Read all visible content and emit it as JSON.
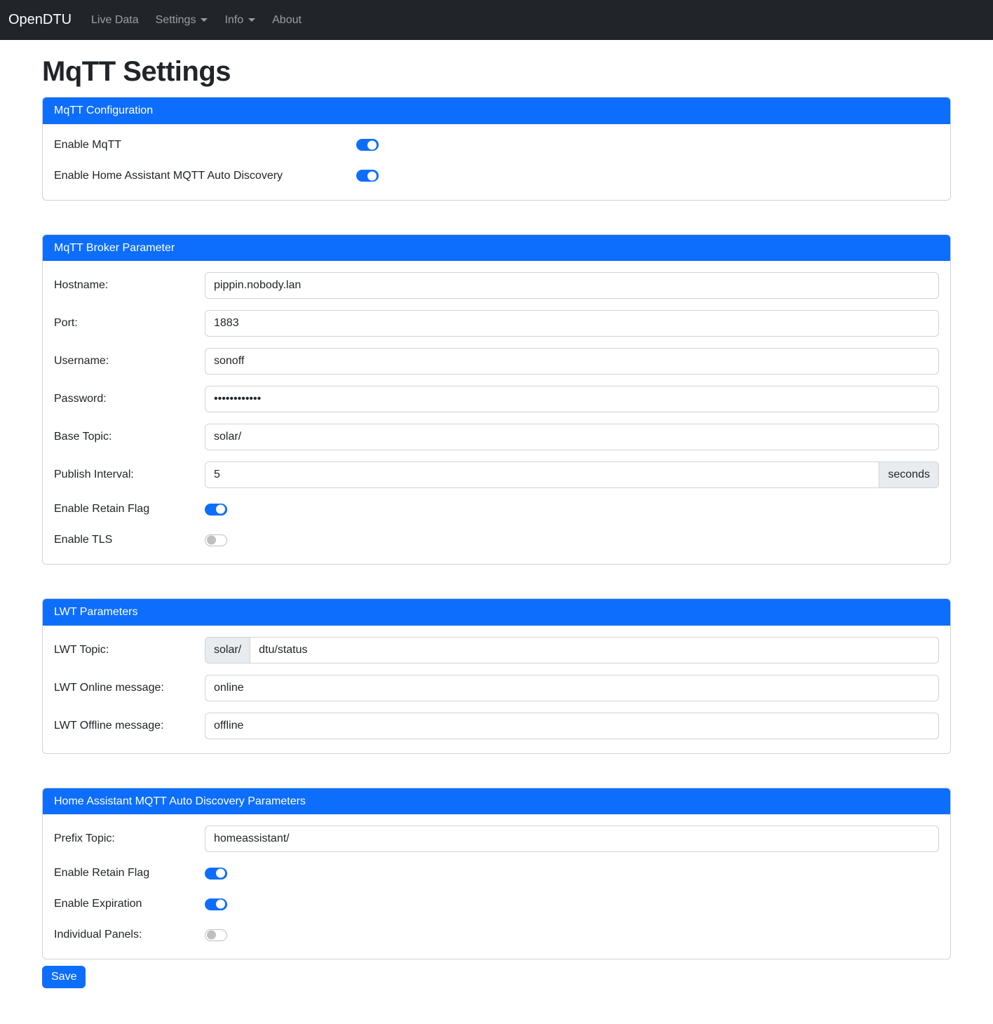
{
  "colors": {
    "primary": "#0d6efd",
    "navbar_bg": "#212529",
    "body_text": "#212529",
    "input_border": "#ced4da",
    "addon_bg": "#e9ecef"
  },
  "navbar": {
    "brand": "OpenDTU",
    "items": [
      {
        "label": "Live Data"
      },
      {
        "label": "Settings",
        "caret": true
      },
      {
        "label": "Info",
        "caret": true
      },
      {
        "label": "About"
      }
    ]
  },
  "page": {
    "title": "MqTT Settings"
  },
  "mqtt_configuration": {
    "header": "MqTT Configuration",
    "enable_mqtt": {
      "label": "Enable MqTT",
      "value": true
    },
    "enable_hass_discovery": {
      "label": "Enable Home Assistant MQTT Auto Discovery",
      "value": true
    }
  },
  "broker": {
    "header": "MqTT Broker Parameter",
    "hostname": {
      "label": "Hostname:",
      "value": "pippin.nobody.lan"
    },
    "port": {
      "label": "Port:",
      "value": "1883"
    },
    "username": {
      "label": "Username:",
      "value": "sonoff"
    },
    "password": {
      "label": "Password:",
      "value": "••••••••••••"
    },
    "base_topic": {
      "label": "Base Topic:",
      "value": "solar/"
    },
    "publish_interval": {
      "label": "Publish Interval:",
      "value": "5",
      "unit": "seconds"
    },
    "retain": {
      "label": "Enable Retain Flag",
      "value": true
    },
    "tls": {
      "label": "Enable TLS",
      "value": false
    }
  },
  "lwt": {
    "header": "LWT Parameters",
    "topic": {
      "label": "LWT Topic:",
      "prefix": "solar/",
      "value": "dtu/status"
    },
    "online": {
      "label": "LWT Online message:",
      "value": "online"
    },
    "offline": {
      "label": "LWT Offline message:",
      "value": "offline"
    }
  },
  "hass": {
    "header": "Home Assistant MQTT Auto Discovery Parameters",
    "prefix_topic": {
      "label": "Prefix Topic:",
      "value": "homeassistant/"
    },
    "retain": {
      "label": "Enable Retain Flag",
      "value": true
    },
    "expiration": {
      "label": "Enable Expiration",
      "value": true
    },
    "individual_panels": {
      "label": "Individual Panels:",
      "value": false
    }
  },
  "save_button": "Save"
}
